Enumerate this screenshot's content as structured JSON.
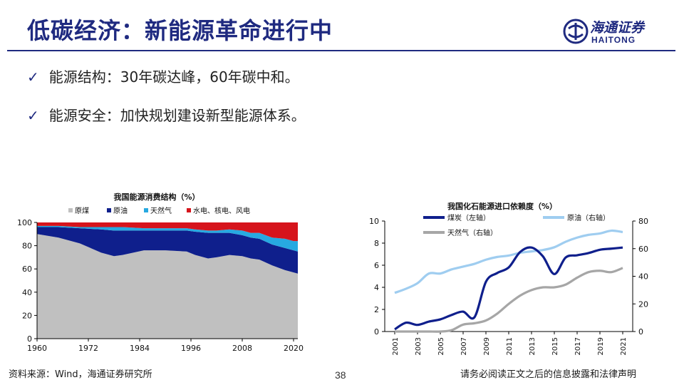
{
  "header": {
    "title": "低碳经济：新能源革命进行中",
    "logo_cn": "海通证券",
    "logo_en": "HAITONG"
  },
  "bullets": [
    {
      "text": "能源结构：30年碳达峰，60年碳中和。"
    },
    {
      "text": "能源安全：加快规划建设新型能源体系。"
    }
  ],
  "footer": {
    "source": "资料来源：Wind，海通证券研究所",
    "page": "38",
    "disclaimer": "请务必阅读正文之后的信息披露和法律声明"
  },
  "colors": {
    "brand": "#1f2a80",
    "coal_gray": "#c0c0c0",
    "oil_navy": "#0f1f8c",
    "gas_cyan": "#27a9e1",
    "hydro_red": "#d6141c",
    "crude_light": "#9fcdf0",
    "gas_gray": "#a6a6a6"
  },
  "chart_data": [
    {
      "type": "area",
      "title": "我国能源消费结构（%）",
      "legend": [
        "原煤",
        "原油",
        "天然气",
        "水电、核电、风电"
      ],
      "x": [
        1960,
        1965,
        1970,
        1975,
        1978,
        1980,
        1985,
        1990,
        1995,
        1997,
        2000,
        2002,
        2005,
        2008,
        2010,
        2012,
        2015,
        2018,
        2020,
        2021
      ],
      "series": [
        {
          "name": "原煤",
          "values": [
            90,
            87,
            82,
            74,
            71,
            72,
            76,
            76,
            75,
            72,
            69,
            70,
            72,
            71,
            69,
            68,
            63,
            59,
            57,
            56
          ]
        },
        {
          "name": "原油",
          "values": [
            6,
            9,
            13,
            20,
            22,
            21,
            17,
            17,
            18,
            20,
            22,
            21,
            19,
            18,
            18,
            18,
            18,
            19,
            19,
            19
          ]
        },
        {
          "name": "天然气",
          "values": [
            1,
            1,
            1,
            2,
            3,
            3,
            2,
            2,
            2,
            2,
            2,
            2,
            3,
            4,
            4,
            5,
            6,
            8,
            8,
            9
          ]
        },
        {
          "name": "水电、核电、风电",
          "values": [
            3,
            3,
            4,
            4,
            4,
            4,
            5,
            5,
            5,
            6,
            7,
            7,
            6,
            7,
            9,
            9,
            13,
            14,
            16,
            16
          ]
        }
      ],
      "xticks": [
        "1960",
        "1972",
        "1984",
        "1996",
        "2008",
        "2020"
      ],
      "yticks": [
        "0",
        "20",
        "40",
        "60",
        "80",
        "100"
      ],
      "ylim": [
        0,
        100
      ]
    },
    {
      "type": "line",
      "title": "我国化石能源进口依赖度（%）",
      "legend": [
        "煤炭（左轴）",
        "原油（右轴）",
        "天然气（右轴）"
      ],
      "x": [
        2001,
        2002,
        2003,
        2004,
        2005,
        2006,
        2007,
        2008,
        2009,
        2010,
        2011,
        2012,
        2013,
        2014,
        2015,
        2016,
        2017,
        2018,
        2019,
        2020,
        2021
      ],
      "series": [
        {
          "name": "煤炭（左轴）",
          "axis": "left",
          "values": [
            0.2,
            0.8,
            0.6,
            0.9,
            1.1,
            1.5,
            1.8,
            1.3,
            4.5,
            5.3,
            5.8,
            7.2,
            7.6,
            6.8,
            5.2,
            6.7,
            6.9,
            7.1,
            7.4,
            7.5,
            7.6
          ]
        },
        {
          "name": "原油（右轴）",
          "axis": "right",
          "values": [
            28,
            31,
            35,
            42,
            42,
            45,
            47,
            49,
            52,
            54,
            55,
            57,
            58,
            59,
            61,
            65,
            68,
            70,
            71,
            73,
            72
          ]
        },
        {
          "name": "天然气（右轴）",
          "axis": "right",
          "values": [
            0,
            0,
            0,
            0,
            0,
            1,
            5,
            6,
            8,
            13,
            20,
            26,
            30,
            32,
            32,
            34,
            39,
            43,
            44,
            43,
            46
          ]
        }
      ],
      "xticks": [
        "2001",
        "2003",
        "2005",
        "2007",
        "2009",
        "2011",
        "2013",
        "2015",
        "2017",
        "2019",
        "2021"
      ],
      "yticks_left": [
        "0",
        "2",
        "4",
        "6",
        "8",
        "10"
      ],
      "yticks_right": [
        "0",
        "20",
        "40",
        "60",
        "80"
      ],
      "ylim_left": [
        0,
        10
      ],
      "ylim_right": [
        0,
        80
      ]
    }
  ]
}
